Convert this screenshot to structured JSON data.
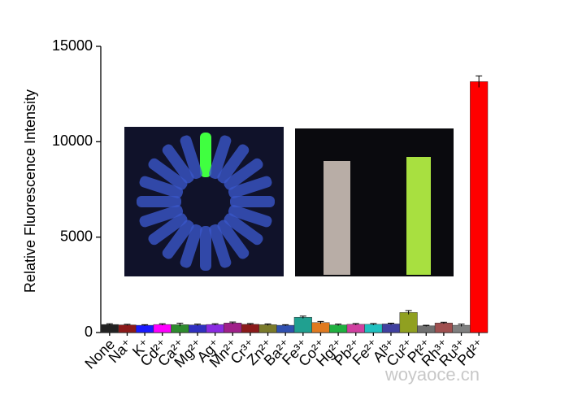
{
  "chart_data": {
    "type": "bar",
    "y_label": "Relative Fluorescence Intensity",
    "categories": [
      "None",
      "Na⁺",
      "K⁺",
      "Cd²⁺",
      "Ca²⁺",
      "Mg²⁺",
      "Ag⁺",
      "Mn²⁺",
      "Cr³⁺",
      "Zn²⁺",
      "Ba²⁺",
      "Fe³⁺",
      "Co²⁺",
      "Hg²⁺",
      "Pb²⁺",
      "Fe²⁺",
      "Al³⁺",
      "Cu²⁺",
      "Pt²⁺",
      "Rh³⁺",
      "Ru³⁺",
      "Pd²⁺"
    ],
    "values": [
      420,
      400,
      380,
      420,
      410,
      400,
      420,
      500,
      430,
      410,
      380,
      800,
      520,
      400,
      430,
      430,
      450,
      1050,
      350,
      500,
      380,
      13150
    ],
    "errors": [
      40,
      30,
      30,
      40,
      80,
      40,
      40,
      50,
      40,
      40,
      30,
      60,
      60,
      40,
      40,
      40,
      40,
      100,
      30,
      40,
      60,
      300
    ],
    "colors": [
      "#222222",
      "#8b1a1a",
      "#1a1aff",
      "#ff00ff",
      "#2e8b2e",
      "#3030c0",
      "#8a2be2",
      "#a0208a",
      "#8b1a1a",
      "#7a7a2a",
      "#3050b0",
      "#20a090",
      "#e07a20",
      "#20b040",
      "#d040a0",
      "#20c0c0",
      "#4040a0",
      "#90a020",
      "#707070",
      "#a05050",
      "#808080",
      "#ff0000"
    ],
    "ylim": [
      0,
      15000
    ],
    "yticks": [
      0,
      5000,
      10000,
      15000
    ],
    "watermark": "woyaoce.cn"
  }
}
